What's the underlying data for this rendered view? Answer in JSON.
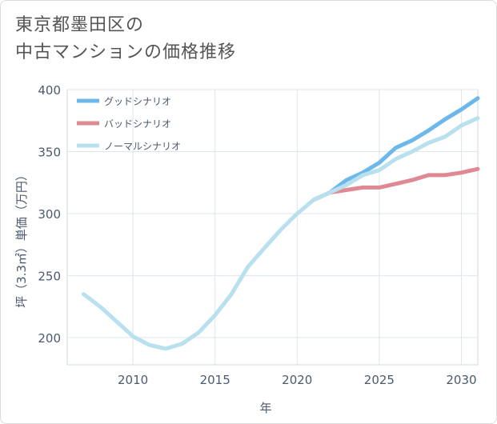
{
  "title": {
    "line1": "東京都墨田区の",
    "line2": "中古マンションの価格推移"
  },
  "chart_data": {
    "type": "line",
    "xlabel": "年",
    "ylabel": "坪（3.3㎡）単価（万円）",
    "xlim": [
      2006,
      2031
    ],
    "ylim": [
      178,
      400
    ],
    "xticks": [
      2010,
      2015,
      2020,
      2025,
      2030
    ],
    "yticks": [
      200,
      250,
      300,
      350,
      400
    ],
    "grid": true,
    "legend_position": "top-left",
    "series": [
      {
        "name": "グッドシナリオ",
        "color": "#6cb8ea",
        "x": [
          2021,
          2022,
          2023,
          2024,
          2025,
          2026,
          2027,
          2028,
          2029,
          2030,
          2031
        ],
        "y": [
          311,
          317,
          327,
          333,
          341,
          353,
          359,
          367,
          376,
          384,
          393
        ]
      },
      {
        "name": "バッドシナリオ",
        "color": "#df8a92",
        "x": [
          2021,
          2022,
          2023,
          2024,
          2025,
          2026,
          2027,
          2028,
          2029,
          2030,
          2031
        ],
        "y": [
          311,
          317,
          319,
          321,
          321,
          324,
          327,
          331,
          331,
          333,
          336
        ]
      },
      {
        "name": "ノーマルシナリオ",
        "color": "#b9e0ee",
        "x": [
          2007,
          2008,
          2009,
          2010,
          2011,
          2012,
          2013,
          2014,
          2015,
          2016,
          2017,
          2018,
          2019,
          2020,
          2021,
          2022,
          2023,
          2024,
          2025,
          2026,
          2027,
          2028,
          2029,
          2030,
          2031
        ],
        "y": [
          235,
          225,
          213,
          201,
          194,
          191,
          195,
          204,
          218,
          235,
          257,
          272,
          287,
          300,
          311,
          317,
          323,
          331,
          335,
          344,
          350,
          357,
          362,
          371,
          377
        ]
      }
    ]
  }
}
